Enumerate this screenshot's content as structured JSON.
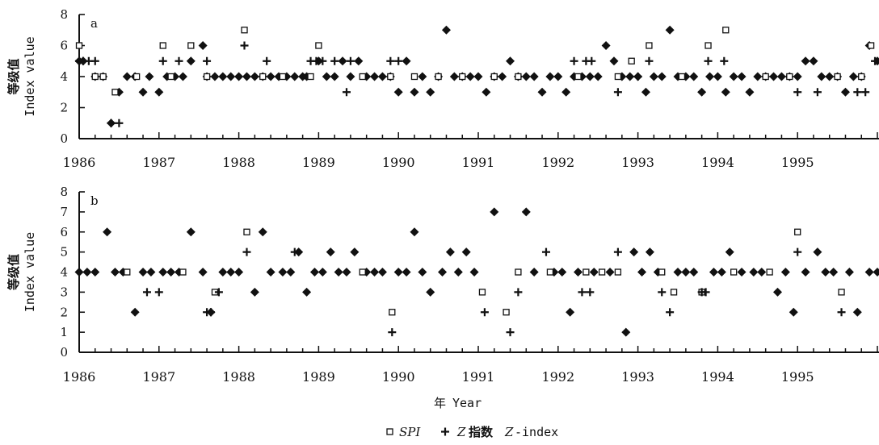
{
  "legend": {
    "spi": "SPI",
    "z_prefix": "Z",
    "z_cn": "指数",
    "z_en_prefix": "Z",
    "z_en_suffix": "-index"
  },
  "xtitle": {
    "cn": "年",
    "en": "Year"
  },
  "chart_data": [
    {
      "type": "scatter",
      "panel_label": "a",
      "ylabel_cn": "等级值",
      "ylabel_en": "Index value",
      "xlim": [
        1986,
        1996
      ],
      "ylim": [
        0,
        8
      ],
      "yticks": [
        0,
        2,
        4,
        6,
        8
      ],
      "xtick_labels": [
        "1986",
        "1987",
        "1988",
        "1989",
        "1990",
        "1991",
        "1992",
        "1993",
        "1994",
        "1995"
      ],
      "series": [
        {
          "name": "SPI",
          "marker": "open-square",
          "x": [
            1986.0,
            1986.2,
            1986.3,
            1986.45,
            1986.72,
            1987.05,
            1987.15,
            1987.4,
            1987.6,
            1988.07,
            1988.3,
            1988.55,
            1988.9,
            1989.0,
            1989.55,
            1989.9,
            1990.2,
            1990.5,
            1990.8,
            1991.2,
            1991.5,
            1992.25,
            1992.75,
            1992.92,
            1993.14,
            1993.55,
            1993.88,
            1994.1,
            1994.6,
            1994.9,
            1995.5,
            1995.8,
            1995.92
          ],
          "y": [
            6,
            4,
            4,
            3,
            4,
            6,
            4,
            6,
            4,
            7,
            4,
            4,
            4,
            6,
            4,
            4,
            4,
            4,
            4,
            4,
            4,
            4,
            4,
            5,
            6,
            4,
            6,
            7,
            4,
            4,
            4,
            4,
            6
          ]
        },
        {
          "name": "Z-index",
          "marker": "plus",
          "x": [
            1986.0,
            1986.05,
            1986.12,
            1986.2,
            1986.4,
            1986.5,
            1987.05,
            1987.25,
            1987.6,
            1988.07,
            1988.35,
            1988.9,
            1988.97,
            1989.05,
            1989.2,
            1989.35,
            1989.4,
            1989.9,
            1990.0,
            1992.2,
            1992.35,
            1992.42,
            1992.75,
            1993.0,
            1993.14,
            1993.88,
            1994.08,
            1995.0,
            1995.25,
            1995.75,
            1995.85,
            1995.97
          ],
          "y": [
            5,
            5,
            5,
            5,
            1,
            1,
            5,
            5,
            5,
            6,
            5,
            5,
            5,
            5,
            5,
            3,
            5,
            5,
            5,
            5,
            5,
            5,
            3,
            4,
            5,
            5,
            5,
            3,
            3,
            3,
            3,
            5
          ]
        },
        {
          "name": "",
          "marker": "filled-diamond",
          "x": [
            1986.0,
            1986.05,
            1986.2,
            1986.3,
            1986.4,
            1986.5,
            1986.6,
            1986.7,
            1986.8,
            1986.88,
            1987.0,
            1987.1,
            1987.2,
            1987.3,
            1987.4,
            1987.55,
            1987.6,
            1987.7,
            1987.8,
            1987.9,
            1988.0,
            1988.1,
            1988.2,
            1988.3,
            1988.4,
            1988.5,
            1988.6,
            1988.7,
            1988.8,
            1988.85,
            1989.0,
            1989.1,
            1989.2,
            1989.3,
            1989.4,
            1989.5,
            1989.6,
            1989.7,
            1989.8,
            1989.9,
            1990.0,
            1990.1,
            1990.2,
            1990.3,
            1990.4,
            1990.5,
            1990.6,
            1990.7,
            1990.8,
            1990.9,
            1991.0,
            1991.1,
            1991.2,
            1991.3,
            1991.4,
            1991.5,
            1991.6,
            1991.7,
            1991.8,
            1991.9,
            1992.0,
            1992.1,
            1992.2,
            1992.3,
            1992.4,
            1992.5,
            1992.6,
            1992.7,
            1992.8,
            1992.9,
            1993.0,
            1993.1,
            1993.2,
            1993.3,
            1993.4,
            1993.5,
            1993.6,
            1993.7,
            1993.8,
            1993.9,
            1994.0,
            1994.1,
            1994.2,
            1994.3,
            1994.4,
            1994.5,
            1994.6,
            1994.7,
            1994.8,
            1994.9,
            1995.0,
            1995.1,
            1995.2,
            1995.3,
            1995.4,
            1995.5,
            1995.6,
            1995.7,
            1995.8,
            1995.9,
            1996.0
          ],
          "y": [
            5,
            5,
            4,
            4,
            1,
            3,
            4,
            4,
            3,
            4,
            3,
            4,
            4,
            4,
            5,
            6,
            4,
            4,
            4,
            4,
            4,
            4,
            4,
            4,
            4,
            4,
            4,
            4,
            4,
            4,
            5,
            4,
            4,
            5,
            4,
            5,
            4,
            4,
            4,
            4,
            3,
            5,
            3,
            4,
            3,
            4,
            7,
            4,
            4,
            4,
            4,
            3,
            4,
            4,
            5,
            4,
            4,
            4,
            3,
            4,
            4,
            3,
            4,
            4,
            4,
            4,
            6,
            5,
            4,
            4,
            4,
            3,
            4,
            4,
            7,
            4,
            4,
            4,
            3,
            4,
            4,
            3,
            4,
            4,
            3,
            4,
            4,
            4,
            4,
            4,
            4,
            5,
            5,
            4,
            4,
            4,
            3,
            4,
            4,
            6,
            5
          ]
        }
      ]
    },
    {
      "type": "scatter",
      "panel_label": "b",
      "ylabel_cn": "等级值",
      "ylabel_en": "Index value",
      "xlim": [
        1986,
        1996
      ],
      "ylim": [
        0,
        8
      ],
      "yticks": [
        0,
        1,
        2,
        3,
        4,
        5,
        6,
        7,
        8
      ],
      "xtick_labels": [
        "1986",
        "1987",
        "1988",
        "1989",
        "1990",
        "1991",
        "1992",
        "1993",
        "1994",
        "1995"
      ],
      "series": [
        {
          "name": "SPI",
          "marker": "open-square",
          "x": [
            1986.6,
            1987.3,
            1987.7,
            1988.1,
            1989.55,
            1989.92,
            1991.05,
            1991.35,
            1991.5,
            1991.9,
            1992.35,
            1992.55,
            1992.75,
            1993.3,
            1993.45,
            1993.8,
            1994.2,
            1994.65,
            1995.0,
            1995.55
          ],
          "y": [
            4,
            4,
            3,
            6,
            4,
            2,
            3,
            2,
            4,
            4,
            4,
            4,
            4,
            4,
            3,
            3,
            4,
            4,
            6,
            3
          ]
        },
        {
          "name": "Z-index",
          "marker": "plus",
          "x": [
            1986.85,
            1987.0,
            1987.6,
            1987.65,
            1987.75,
            1988.1,
            1988.7,
            1989.92,
            1991.08,
            1991.4,
            1991.5,
            1991.85,
            1992.3,
            1992.4,
            1992.75,
            1993.3,
            1993.4,
            1993.8,
            1993.85,
            1995.0,
            1995.55
          ],
          "y": [
            3,
            3,
            2,
            2,
            3,
            5,
            5,
            1,
            2,
            1,
            3,
            5,
            3,
            3,
            5,
            3,
            2,
            3,
            3,
            5,
            2
          ]
        },
        {
          "name": "",
          "marker": "filled-diamond",
          "x": [
            1986.0,
            1986.1,
            1986.2,
            1986.35,
            1986.45,
            1986.55,
            1986.7,
            1986.8,
            1986.9,
            1987.05,
            1987.15,
            1987.25,
            1987.4,
            1987.55,
            1987.65,
            1987.8,
            1987.9,
            1988.0,
            1988.2,
            1988.3,
            1988.4,
            1988.55,
            1988.65,
            1988.75,
            1988.85,
            1988.95,
            1989.05,
            1989.15,
            1989.25,
            1989.35,
            1989.45,
            1989.6,
            1989.7,
            1989.8,
            1990.0,
            1990.1,
            1990.2,
            1990.3,
            1990.4,
            1990.55,
            1990.65,
            1990.75,
            1990.85,
            1990.95,
            1991.2,
            1991.6,
            1991.7,
            1991.95,
            1992.05,
            1992.15,
            1992.25,
            1992.45,
            1992.65,
            1992.85,
            1992.95,
            1993.05,
            1993.15,
            1993.25,
            1993.5,
            1993.6,
            1993.7,
            1993.95,
            1994.05,
            1994.15,
            1994.3,
            1994.45,
            1994.55,
            1994.75,
            1994.85,
            1994.95,
            1995.1,
            1995.25,
            1995.35,
            1995.45,
            1995.65,
            1995.75,
            1995.9,
            1996.0
          ],
          "y": [
            4,
            4,
            4,
            6,
            4,
            4,
            2,
            4,
            4,
            4,
            4,
            4,
            6,
            4,
            2,
            4,
            4,
            4,
            3,
            6,
            4,
            4,
            4,
            5,
            3,
            4,
            4,
            5,
            4,
            4,
            5,
            4,
            4,
            4,
            4,
            4,
            6,
            4,
            3,
            4,
            5,
            4,
            5,
            4,
            7,
            7,
            4,
            4,
            4,
            2,
            4,
            4,
            4,
            1,
            5,
            4,
            5,
            4,
            4,
            4,
            4,
            4,
            4,
            5,
            4,
            4,
            4,
            3,
            4,
            2,
            4,
            5,
            4,
            4,
            4,
            2,
            4,
            4
          ]
        }
      ]
    }
  ]
}
